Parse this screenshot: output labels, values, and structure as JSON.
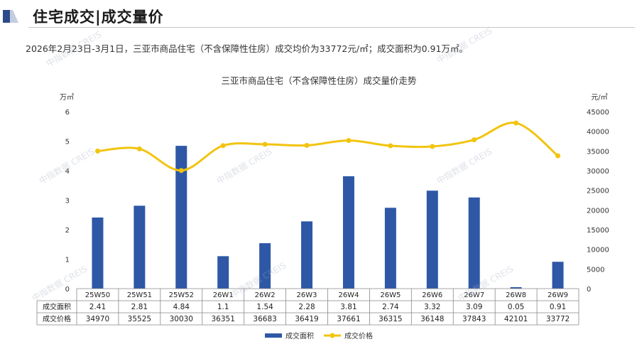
{
  "header": {
    "title": "住宅成交|成交量价",
    "summary": "2026年2月23日-3月1日，三亚市商品住宅（不含保障性住房）成交均价为33772元/㎡；成交面积为0.91万㎡。"
  },
  "watermark": {
    "text": "中指数据 CREIS"
  },
  "colors": {
    "bar": "#2e58a6",
    "line": "#f2c40f",
    "icon_dark": "#2b4a8a",
    "icon_light": "#c4cde0"
  },
  "chart_data": {
    "type": "bar",
    "title": "三亚市商品住宅（不含保障性住房）成交量价走势",
    "categories": [
      "25W50",
      "25W51",
      "25W52",
      "26W1",
      "26W2",
      "26W3",
      "26W4",
      "26W5",
      "26W6",
      "26W7",
      "26W8",
      "26W9"
    ],
    "series": [
      {
        "name": "成交面积",
        "type": "bar",
        "axis": "left",
        "values": [
          2.41,
          2.81,
          4.84,
          1.1,
          1.54,
          2.28,
          3.81,
          2.74,
          3.32,
          3.09,
          0.05,
          0.91
        ]
      },
      {
        "name": "成交价格",
        "type": "line",
        "axis": "right",
        "values": [
          34970,
          35525,
          30030,
          36351,
          36683,
          36419,
          37661,
          36315,
          36148,
          37843,
          42101,
          33772
        ]
      }
    ],
    "table_values": {
      "area": [
        "2.41",
        "2.81",
        "4.84",
        "1.1",
        "1.54",
        "2.28",
        "3.81",
        "2.74",
        "3.32",
        "3.09",
        "0.05",
        "0.91"
      ],
      "price": [
        "34970",
        "35525",
        "30030",
        "36351",
        "36683",
        "36419",
        "37661",
        "36315",
        "36148",
        "37843",
        "42101",
        "33772"
      ]
    },
    "left_axis": {
      "unit": "万㎡",
      "ticks": [
        "0",
        "1",
        "2",
        "3",
        "4",
        "5",
        "6"
      ],
      "range": [
        0,
        6
      ]
    },
    "right_axis": {
      "unit": "元/㎡",
      "ticks": [
        "0",
        "5000",
        "10000",
        "15000",
        "20000",
        "25000",
        "30000",
        "35000",
        "40000",
        "45000"
      ],
      "range": [
        0,
        45000
      ]
    },
    "legend": {
      "position": "bottom"
    },
    "grid": false
  }
}
